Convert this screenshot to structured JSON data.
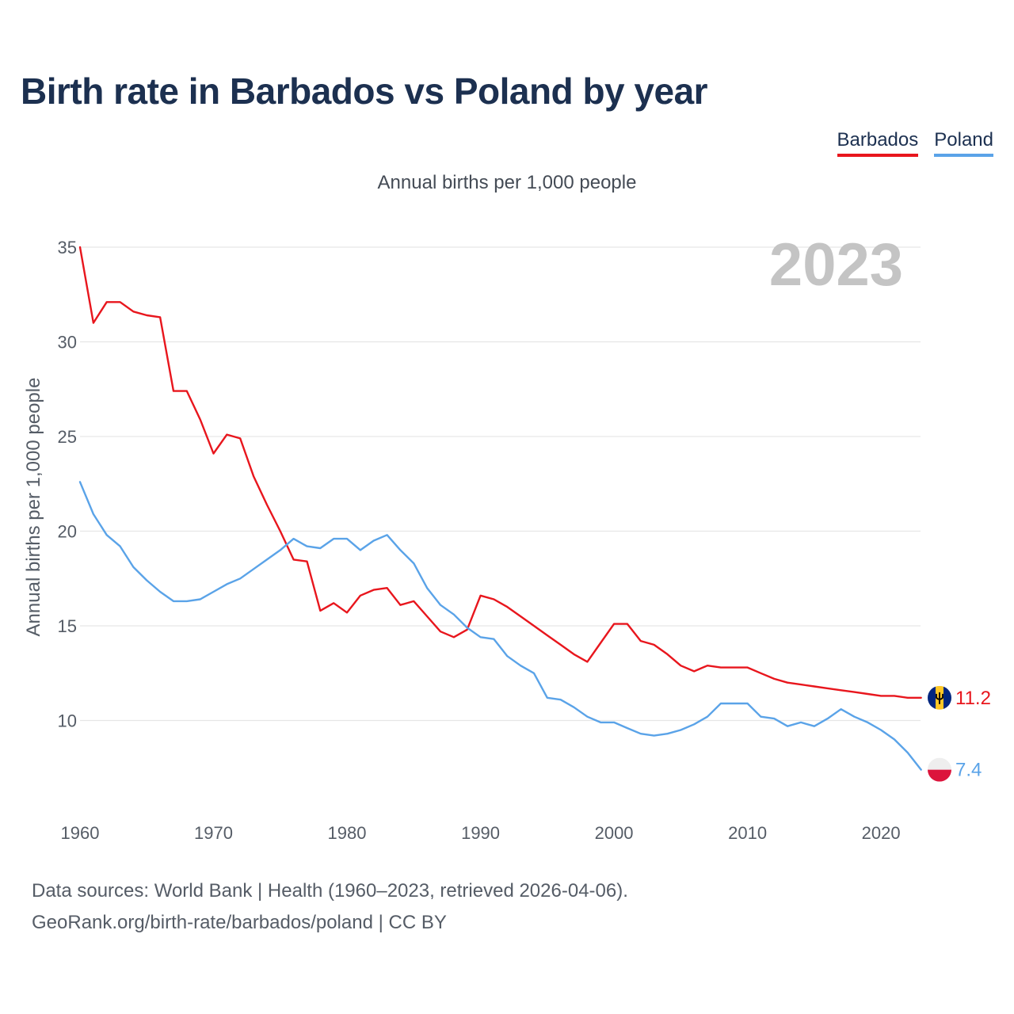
{
  "title": "Birth rate in Barbados vs Poland by year",
  "subtitle": "Annual births per 1,000 people",
  "footer": {
    "line1": "Data sources: World Bank | Health (1960–2023, retrieved 2026-04-06).",
    "line2": "GeoRank.org/birth-rate/barbados/poland | CC BY"
  },
  "chart_data": {
    "type": "line",
    "title": "Birth rate in Barbados vs Poland by year",
    "xlabel": "",
    "ylabel": "Annual births per 1,000 people",
    "year_label": "2023",
    "xlim": [
      1960,
      2023
    ],
    "ylim": [
      6,
      35
    ],
    "yticks": [
      10,
      15,
      20,
      25,
      30,
      35
    ],
    "xticks": [
      1960,
      1970,
      1980,
      1990,
      2000,
      2010,
      2020
    ],
    "grid": true,
    "legend_position": "top-right",
    "x": [
      1960,
      1961,
      1962,
      1963,
      1964,
      1965,
      1966,
      1967,
      1968,
      1969,
      1970,
      1971,
      1972,
      1973,
      1974,
      1975,
      1976,
      1977,
      1978,
      1979,
      1980,
      1981,
      1982,
      1983,
      1984,
      1985,
      1986,
      1987,
      1988,
      1989,
      1990,
      1991,
      1992,
      1993,
      1994,
      1995,
      1996,
      1997,
      1998,
      1999,
      2000,
      2001,
      2002,
      2003,
      2004,
      2005,
      2006,
      2007,
      2008,
      2009,
      2010,
      2011,
      2012,
      2013,
      2014,
      2015,
      2016,
      2017,
      2018,
      2019,
      2020,
      2021,
      2022,
      2023
    ],
    "series": [
      {
        "name": "Barbados",
        "color": "#e8161d",
        "end_label": "11.2",
        "values": [
          35.0,
          31.0,
          32.1,
          32.1,
          31.6,
          31.4,
          31.3,
          27.4,
          27.4,
          25.9,
          24.1,
          25.1,
          24.9,
          22.9,
          21.4,
          20.0,
          18.5,
          18.4,
          15.8,
          16.2,
          15.7,
          16.6,
          16.9,
          17.0,
          16.1,
          16.3,
          15.5,
          14.7,
          14.4,
          14.8,
          16.6,
          16.4,
          16.0,
          15.5,
          15.0,
          14.5,
          14.0,
          13.5,
          13.1,
          14.1,
          15.1,
          15.1,
          14.2,
          14.0,
          13.5,
          12.9,
          12.6,
          12.9,
          12.8,
          12.8,
          12.8,
          12.5,
          12.2,
          12.0,
          11.9,
          11.8,
          11.7,
          11.6,
          11.5,
          11.4,
          11.3,
          11.3,
          11.2,
          11.2
        ]
      },
      {
        "name": "Poland",
        "color": "#5aa3e8",
        "end_label": "7.4",
        "values": [
          22.6,
          20.9,
          19.8,
          19.2,
          18.1,
          17.4,
          16.8,
          16.3,
          16.3,
          16.4,
          16.8,
          17.2,
          17.5,
          18.0,
          18.5,
          19.0,
          19.6,
          19.2,
          19.1,
          19.6,
          19.6,
          19.0,
          19.5,
          19.8,
          19.0,
          18.3,
          17.0,
          16.1,
          15.6,
          14.9,
          14.4,
          14.3,
          13.4,
          12.9,
          12.5,
          11.2,
          11.1,
          10.7,
          10.2,
          9.9,
          9.9,
          9.6,
          9.3,
          9.2,
          9.3,
          9.5,
          9.8,
          10.2,
          10.9,
          10.9,
          10.9,
          10.2,
          10.1,
          9.7,
          9.9,
          9.7,
          10.1,
          10.6,
          10.2,
          9.9,
          9.5,
          9.0,
          8.3,
          7.4
        ]
      }
    ]
  }
}
